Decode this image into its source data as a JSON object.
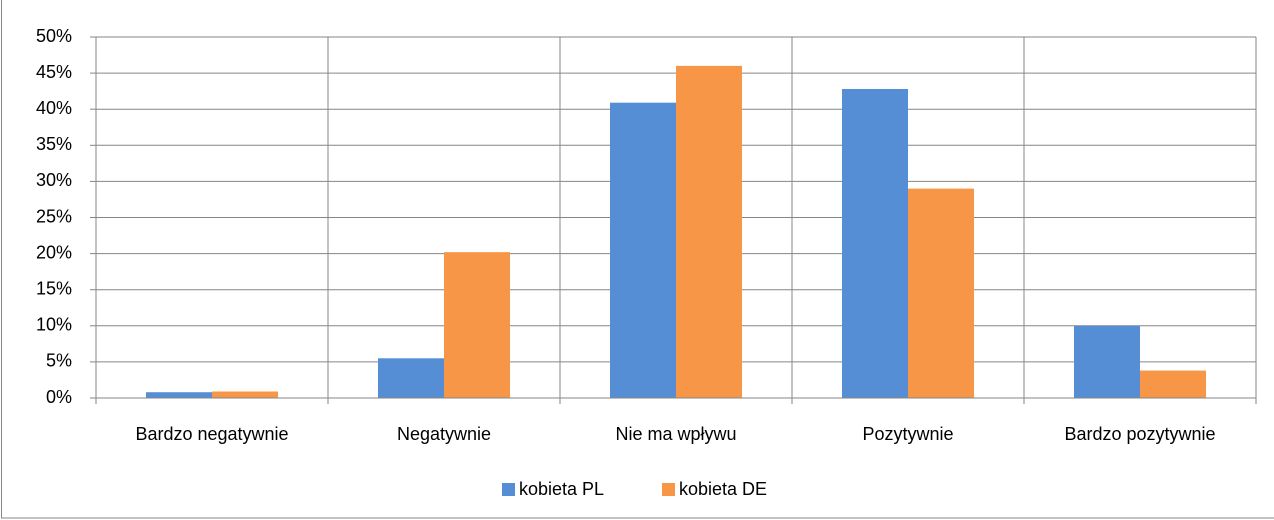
{
  "chart_data": {
    "type": "bar",
    "categories": [
      "Bardzo negatywnie",
      "Negatywnie",
      "Nie ma wpływu",
      "Pozytywnie",
      "Bardzo pozytywnie"
    ],
    "series": [
      {
        "name": "kobieta PL",
        "color": "#558ed5",
        "values": [
          0.8,
          5.5,
          40.9,
          42.8,
          10
        ]
      },
      {
        "name": "kobieta DE",
        "color": "#f79646",
        "values": [
          0.9,
          20.2,
          46,
          29,
          3.8
        ]
      }
    ],
    "ylim": [
      0,
      50
    ],
    "yticks": [
      {
        "value": 0,
        "label": "0%"
      },
      {
        "value": 5,
        "label": "5%"
      },
      {
        "value": 10,
        "label": "10%"
      },
      {
        "value": 15,
        "label": "15%"
      },
      {
        "value": 20,
        "label": "20%"
      },
      {
        "value": 25,
        "label": "25%"
      },
      {
        "value": 30,
        "label": "30%"
      },
      {
        "value": 35,
        "label": "35%"
      },
      {
        "value": 40,
        "label": "40%"
      },
      {
        "value": 45,
        "label": "45%"
      },
      {
        "value": 50,
        "label": "50%"
      }
    ],
    "grid": true,
    "legend": "bottom"
  }
}
